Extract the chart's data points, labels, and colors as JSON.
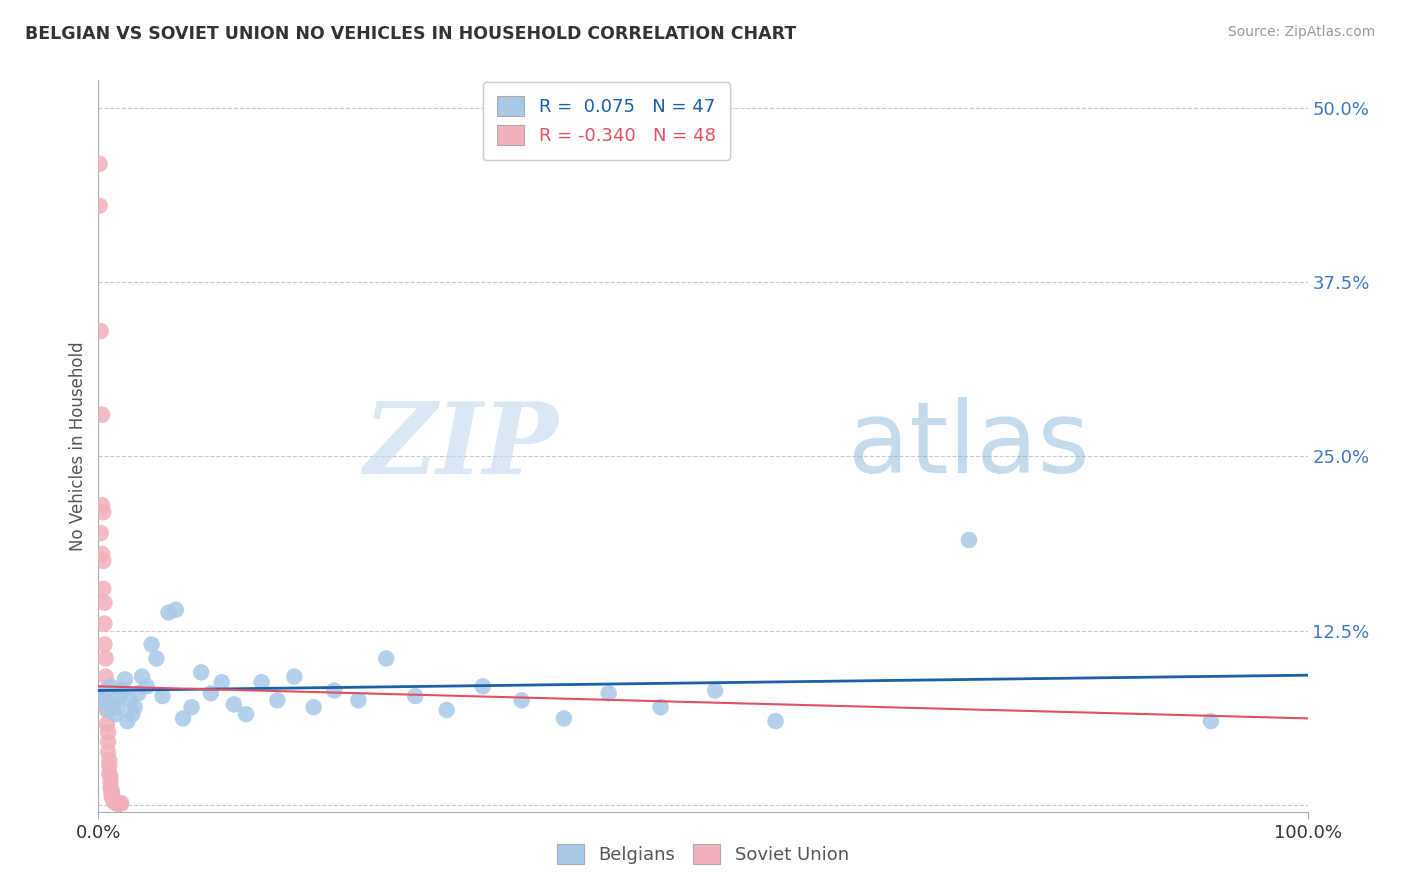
{
  "title": "BELGIAN VS SOVIET UNION NO VEHICLES IN HOUSEHOLD CORRELATION CHART",
  "source": "Source: ZipAtlas.com",
  "ylabel": "No Vehicles in Household",
  "xlim": [
    0,
    1
  ],
  "ylim": [
    -0.005,
    0.52
  ],
  "ytick_vals": [
    0.0,
    0.125,
    0.25,
    0.375,
    0.5
  ],
  "ytick_labels": [
    "",
    "12.5%",
    "25.0%",
    "37.5%",
    "50.0%"
  ],
  "xtick_vals": [
    0,
    1
  ],
  "xtick_labels": [
    "0.0%",
    "100.0%"
  ],
  "background_color": "#ffffff",
  "grid_color": "#c8c8c8",
  "belgian_scatter_color": "#a8c8e8",
  "soviet_scatter_color": "#f0b0bc",
  "belgian_line_color": "#1a5fa8",
  "soviet_line_color": "#e05060",
  "R_belgian": 0.075,
  "N_belgian": 47,
  "R_soviet": -0.34,
  "N_soviet": 48,
  "watermark_zip": "ZIP",
  "watermark_atlas": "atlas",
  "belgians_x": [
    0.004,
    0.006,
    0.008,
    0.01,
    0.012,
    0.014,
    0.016,
    0.018,
    0.02,
    0.022,
    0.024,
    0.026,
    0.028,
    0.03,
    0.033,
    0.036,
    0.04,
    0.044,
    0.048,
    0.053,
    0.058,
    0.064,
    0.07,
    0.077,
    0.085,
    0.093,
    0.102,
    0.112,
    0.122,
    0.135,
    0.148,
    0.162,
    0.178,
    0.195,
    0.215,
    0.238,
    0.262,
    0.288,
    0.318,
    0.35,
    0.385,
    0.422,
    0.465,
    0.51,
    0.56,
    0.72,
    0.92
  ],
  "belgians_y": [
    0.075,
    0.08,
    0.068,
    0.085,
    0.072,
    0.065,
    0.07,
    0.078,
    0.082,
    0.09,
    0.06,
    0.075,
    0.065,
    0.07,
    0.08,
    0.092,
    0.085,
    0.115,
    0.105,
    0.078,
    0.138,
    0.14,
    0.062,
    0.07,
    0.095,
    0.08,
    0.088,
    0.072,
    0.065,
    0.088,
    0.075,
    0.092,
    0.07,
    0.082,
    0.075,
    0.105,
    0.078,
    0.068,
    0.085,
    0.075,
    0.062,
    0.08,
    0.07,
    0.082,
    0.06,
    0.19,
    0.06
  ],
  "soviet_x": [
    0.001,
    0.001,
    0.002,
    0.002,
    0.003,
    0.003,
    0.003,
    0.004,
    0.004,
    0.004,
    0.005,
    0.005,
    0.005,
    0.006,
    0.006,
    0.006,
    0.007,
    0.007,
    0.007,
    0.008,
    0.008,
    0.008,
    0.009,
    0.009,
    0.009,
    0.01,
    0.01,
    0.01,
    0.011,
    0.011,
    0.011,
    0.012,
    0.012,
    0.013,
    0.013,
    0.013,
    0.014,
    0.014,
    0.015,
    0.015,
    0.015,
    0.016,
    0.016,
    0.017,
    0.017,
    0.018,
    0.018,
    0.019
  ],
  "soviet_y": [
    0.46,
    0.43,
    0.34,
    0.195,
    0.28,
    0.215,
    0.18,
    0.21,
    0.175,
    0.155,
    0.145,
    0.13,
    0.115,
    0.105,
    0.092,
    0.082,
    0.075,
    0.068,
    0.058,
    0.052,
    0.045,
    0.038,
    0.032,
    0.028,
    0.022,
    0.02,
    0.016,
    0.012,
    0.01,
    0.008,
    0.006,
    0.005,
    0.004,
    0.003,
    0.003,
    0.002,
    0.002,
    0.002,
    0.001,
    0.001,
    0.001,
    0.001,
    0.001,
    0.001,
    0.001,
    0.001,
    0.001,
    0.001
  ]
}
